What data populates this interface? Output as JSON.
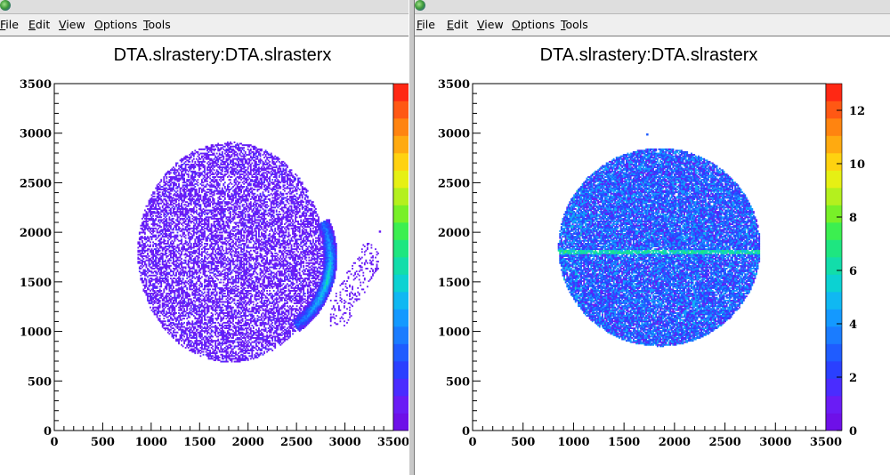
{
  "windows": [
    {
      "menu": [
        {
          "first": "F",
          "rest": "ile"
        },
        {
          "first": "E",
          "rest": "dit"
        },
        {
          "first": "V",
          "rest": "iew"
        },
        {
          "first": "O",
          "rest": "ptions"
        },
        {
          "first": "T",
          "rest": "ools"
        }
      ]
    },
    {
      "menu": [
        {
          "first": "F",
          "rest": "ile"
        },
        {
          "first": "E",
          "rest": "dit"
        },
        {
          "first": "V",
          "rest": "iew"
        },
        {
          "first": "O",
          "rest": "ptions"
        },
        {
          "first": "T",
          "rest": "ools"
        }
      ]
    }
  ],
  "icons": [
    "root-app-icon"
  ],
  "palette": [
    "#6e10e8",
    "#6a1cf5",
    "#4a2cff",
    "#2a40ff",
    "#1f5cff",
    "#1a7cff",
    "#1499ff",
    "#10b8f2",
    "#0cd2d2",
    "#12ddaa",
    "#1ee680",
    "#3cef50",
    "#78f028",
    "#b4f01e",
    "#e6f014",
    "#ffd210",
    "#ffaa10",
    "#ff8410",
    "#ff5814",
    "#ff2814"
  ],
  "chart_data": [
    {
      "type": "heatmap",
      "title": "DTA.slrastery:DTA.slrasterx",
      "xlabel": "",
      "ylabel": "",
      "xlim": [
        0,
        3500
      ],
      "ylim": [
        0,
        3500
      ],
      "xticks": [
        "0",
        "500",
        "1000",
        "1500",
        "2000",
        "2500",
        "3000",
        "3500"
      ],
      "yticks": [
        "0",
        "500",
        "1000",
        "1500",
        "2000",
        "2500",
        "3000",
        "3500"
      ],
      "zlim": [
        0,
        20
      ],
      "zticks": [],
      "distribution": {
        "disk_center": [
          1820,
          1800
        ],
        "disk_radius_x": 960,
        "disk_radius_y": 1110,
        "flat_left_edge_x": 780,
        "typical_count": 1,
        "crescent": {
          "center": [
            2000,
            1750
          ],
          "outer_radius": 920,
          "inner_radius": 780,
          "angle_deg_range": [
            -55,
            25
          ],
          "peak_count": 8
        },
        "sparse_tail": {
          "x_range": [
            2850,
            3350
          ],
          "y_range": [
            1050,
            1900
          ]
        },
        "outliers": [
          [
            3350,
            2000
          ]
        ]
      }
    },
    {
      "type": "heatmap",
      "title": "DTA.slrastery:DTA.slrasterx",
      "xlabel": "",
      "ylabel": "",
      "xlim": [
        0,
        3500
      ],
      "ylim": [
        0,
        3500
      ],
      "xticks": [
        "0",
        "500",
        "1000",
        "1500",
        "2000",
        "2500",
        "3000",
        "3500"
      ],
      "yticks": [
        "0",
        "500",
        "1000",
        "1500",
        "2000",
        "2500",
        "3000",
        "3500"
      ],
      "zlim": [
        0,
        13
      ],
      "zticks": [
        "0",
        "2",
        "4",
        "6",
        "8",
        "10",
        "12"
      ],
      "distribution": {
        "disk_center": [
          1850,
          1850
        ],
        "disk_radius_x": 1000,
        "disk_radius_y": 1000,
        "typical_count": 2.5,
        "horizontal_band_y": 1800,
        "horizontal_band_count": 5,
        "outliers": [
          [
            1720,
            2980
          ]
        ]
      }
    }
  ]
}
